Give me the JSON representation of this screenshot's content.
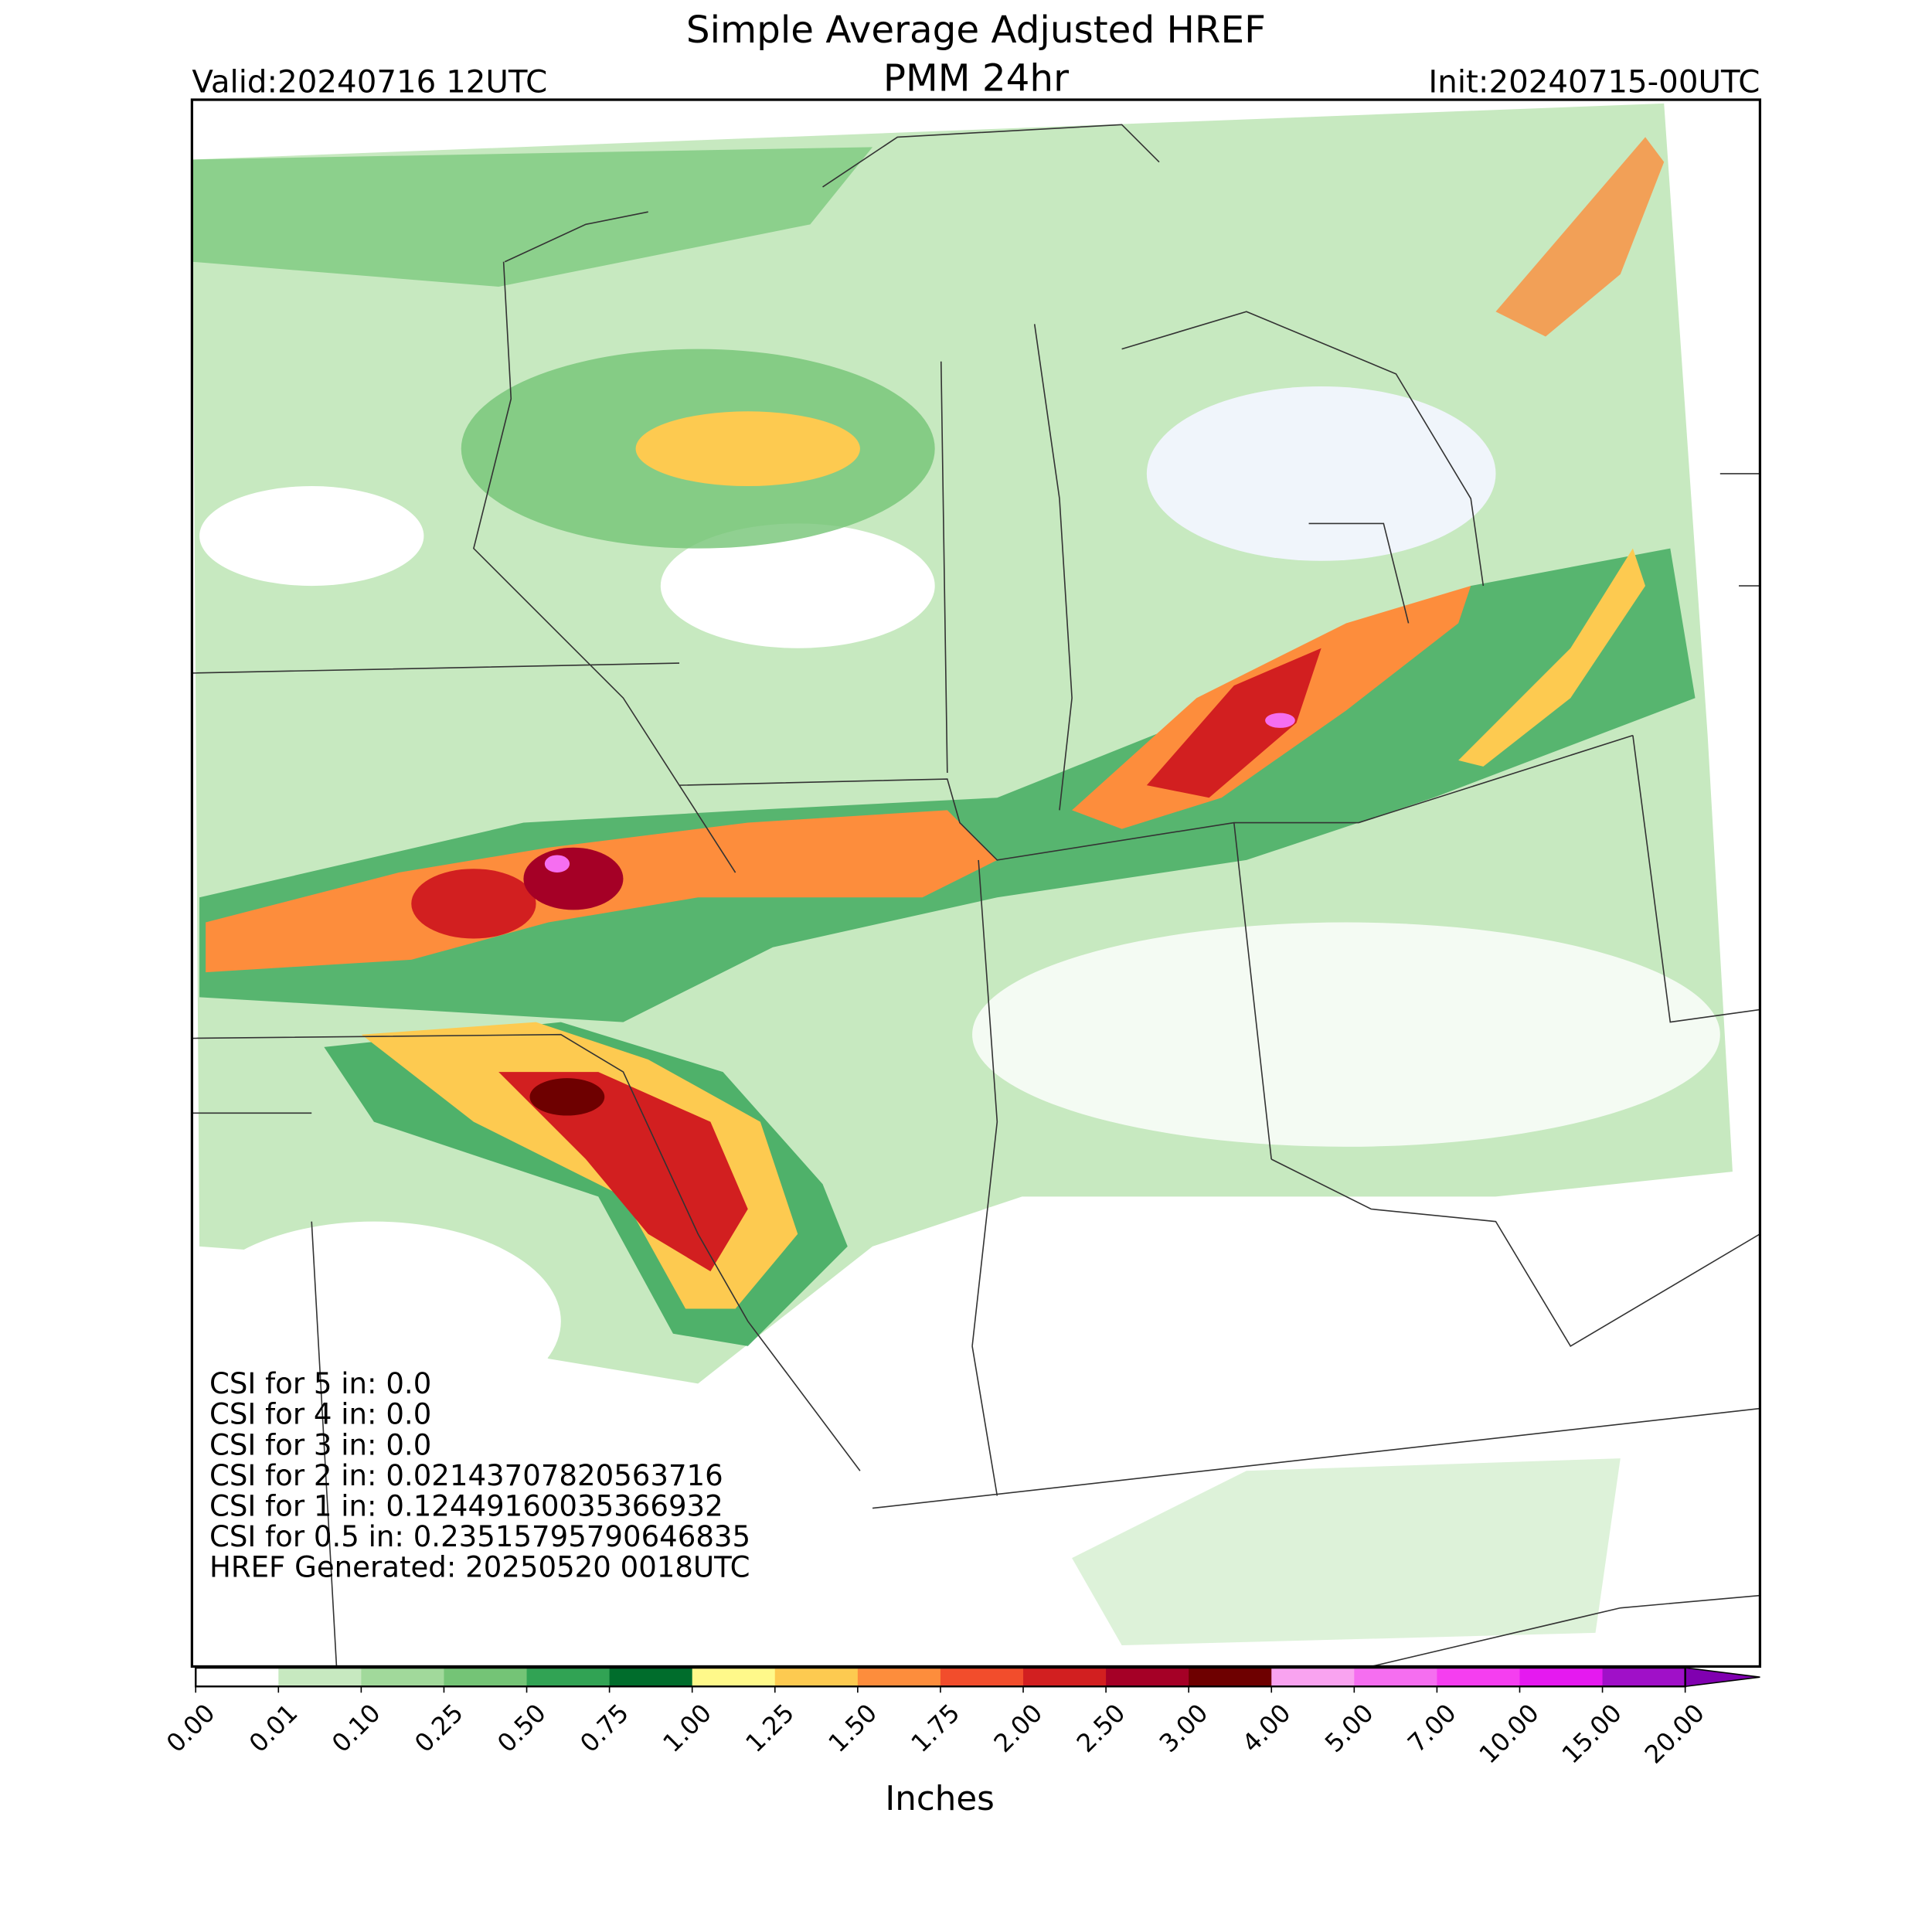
{
  "header": {
    "title": "Simple Average Adjusted HREF",
    "subtitle": "PMM 24hr",
    "valid": "Valid:20240716 12UTC",
    "init": "Init:20240715-00UTC"
  },
  "annotations": [
    "CSI for 5 in: 0.0",
    "CSI for 4 in: 0.0",
    "CSI for 3 in: 0.0",
    "CSI for 2 in: 0.02143707820563716",
    "CSI for 1 in: 0.12449160035366932",
    "CSI for 0.5 in: 0.23515795790646835",
    "HREF Generated: 20250520 0018UTC"
  ],
  "colorbar": {
    "label": "Inches",
    "ticks": [
      "0.00",
      "0.01",
      "0.10",
      "0.25",
      "0.50",
      "0.75",
      "1.00",
      "1.25",
      "1.50",
      "1.75",
      "2.00",
      "2.50",
      "3.00",
      "4.00",
      "5.00",
      "7.00",
      "10.00",
      "15.00",
      "20.00"
    ],
    "colors": [
      "#ffffff",
      "#c7e9c0",
      "#a1d99b",
      "#74c476",
      "#31a354",
      "#006d2c",
      "#fff98a",
      "#fdca50",
      "#fd8d3c",
      "#f24d2c",
      "#d21f20",
      "#a50026",
      "#6e0000",
      "#f9a3f0",
      "#f56ef0",
      "#f53ef0",
      "#e519f0",
      "#a010c8"
    ],
    "extend_color": "#8000b0"
  }
}
